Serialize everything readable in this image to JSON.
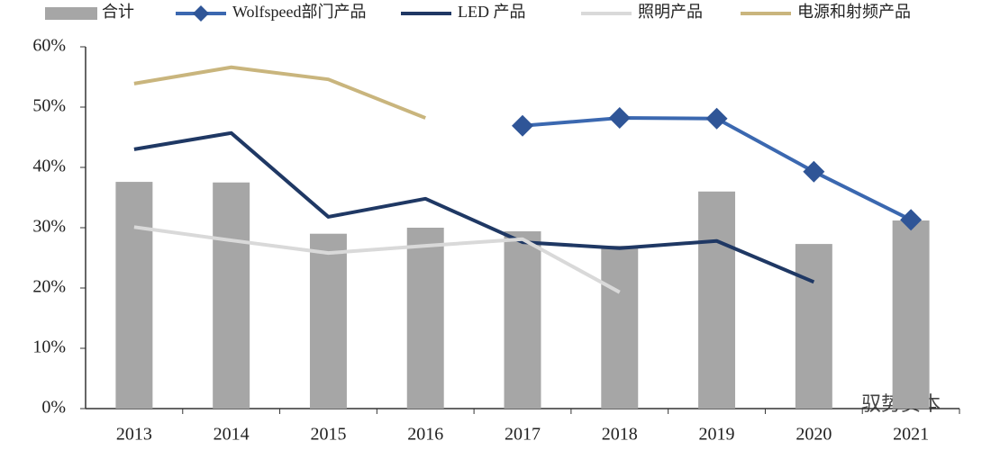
{
  "chart_data": {
    "type": "bar",
    "categories": [
      "2013",
      "2014",
      "2015",
      "2016",
      "2017",
      "2018",
      "2019",
      "2020",
      "2021"
    ],
    "series": [
      {
        "name": "合计",
        "type": "bar",
        "color": "#a6a6a6",
        "values": [
          37.6,
          37.5,
          29.0,
          30.0,
          29.4,
          27.0,
          36.0,
          27.3,
          31.2
        ]
      },
      {
        "name": "Wolfspeed部门产品",
        "type": "line",
        "marker": "diamond",
        "color": "#3b68b0",
        "values": [
          null,
          null,
          null,
          null,
          46.9,
          48.2,
          48.1,
          39.3,
          31.3
        ]
      },
      {
        "name": "LED 产品",
        "type": "line",
        "color": "#1f3864",
        "values": [
          43.0,
          45.7,
          31.8,
          34.8,
          27.6,
          26.6,
          27.8,
          21.0,
          null
        ]
      },
      {
        "name": "照明产品",
        "type": "line",
        "color": "#d9d9d9",
        "values": [
          30.1,
          27.9,
          25.8,
          27.0,
          28.1,
          19.3,
          null,
          null,
          null
        ]
      },
      {
        "name": "电源和射频产品",
        "type": "line",
        "color": "#c9b57d",
        "values": [
          53.9,
          56.6,
          54.6,
          48.2,
          null,
          null,
          null,
          null,
          null
        ]
      }
    ],
    "ylim": [
      0,
      60
    ],
    "yticks": [
      {
        "value": 0,
        "label": "0%"
      },
      {
        "value": 10,
        "label": "10%"
      },
      {
        "value": 20,
        "label": "20%"
      },
      {
        "value": 30,
        "label": "30%"
      },
      {
        "value": 40,
        "label": "40%"
      },
      {
        "value": 50,
        "label": "50%"
      },
      {
        "value": 60,
        "label": "60%"
      }
    ],
    "grid": false,
    "legend": "top",
    "watermark": "驭势资本"
  }
}
